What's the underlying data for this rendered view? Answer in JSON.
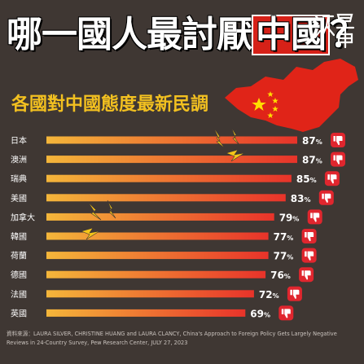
{
  "title": {
    "prefix": "哪一國人最討厭",
    "highlight": "中國",
    "suffix": "？"
  },
  "signature": "沃草",
  "subtitle": "各國對中國態度最新民調",
  "chart_data": {
    "type": "bar",
    "orientation": "horizontal",
    "categories": [
      "日本",
      "澳洲",
      "瑞典",
      "美國",
      "加拿大",
      "韓國",
      "荷蘭",
      "德國",
      "法國",
      "英國"
    ],
    "values": [
      87,
      87,
      85,
      83,
      79,
      77,
      77,
      76,
      72,
      69
    ],
    "unit": "%",
    "bar_gradient": [
      "#f4b63a",
      "#e8332a"
    ],
    "icon": "thumbs-down-icon",
    "icon_color": "#e0262e",
    "grid": false
  },
  "colors": {
    "background": "#3f3733",
    "accent": "#f2c020",
    "red": "#d62118"
  },
  "footer": "資料來源：LAURA SILVER, CHRISTINE HUANG and LAURA CLANCY, China's Approach to Foreign Policy Gets Largely Negative Reviews in 24-Country Survey,  Pew Research Center, JULY 27, 2023"
}
